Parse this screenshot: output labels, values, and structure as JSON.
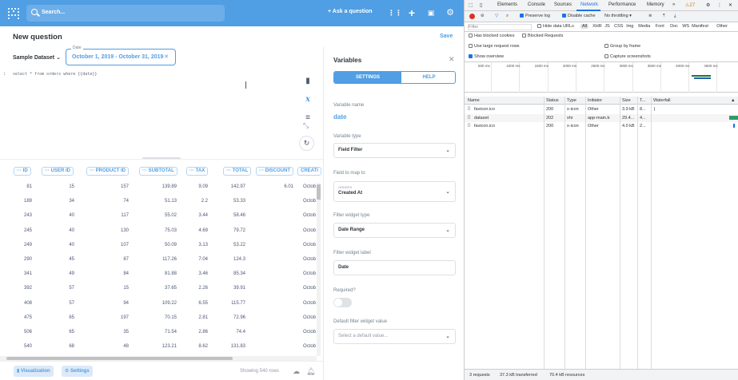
{
  "topbar": {
    "search_placeholder": "Search...",
    "ask_question": "Ask a question",
    "grid_icon": "grid-icon",
    "plus_icon": "plus-icon",
    "browse_icon": "browse-icon",
    "settings_icon": "gear-icon"
  },
  "question": {
    "title": "New question",
    "save": "Save",
    "dataset": "Sample Dataset",
    "date_label": "Date",
    "date_value": "October 1, 2019 - October 31, 2019",
    "sql": "select * from orders where {{date}}",
    "gutter": "1"
  },
  "table": {
    "columns": [
      "ID",
      "USER ID",
      "PRODUCT ID",
      "SUBTOTAL",
      "TAX",
      "TOTAL",
      "DISCOUNT",
      "CREATI"
    ],
    "rows": [
      [
        "81",
        "15",
        "157",
        "139.89",
        "9.09",
        "142.97",
        "6.01",
        "Octob"
      ],
      [
        "189",
        "34",
        "74",
        "51.13",
        "2.2",
        "53.33",
        "",
        "Octob"
      ],
      [
        "243",
        "40",
        "117",
        "55.02",
        "3.44",
        "58.46",
        "",
        "Octob"
      ],
      [
        "245",
        "40",
        "130",
        "75.03",
        "4.69",
        "79.72",
        "",
        "Octob"
      ],
      [
        "249",
        "40",
        "107",
        "50.09",
        "3.13",
        "53.22",
        "",
        "Octob"
      ],
      [
        "290",
        "45",
        "87",
        "117.26",
        "7.04",
        "124.3",
        "",
        "Octob"
      ],
      [
        "341",
        "49",
        "84",
        "81.88",
        "3.46",
        "85.34",
        "",
        "Octob"
      ],
      [
        "392",
        "57",
        "15",
        "37.65",
        "2.26",
        "39.91",
        "",
        "Octob"
      ],
      [
        "408",
        "57",
        "94",
        "109.22",
        "6.55",
        "115.77",
        "",
        "Octob"
      ],
      [
        "475",
        "65",
        "197",
        "70.15",
        "2.81",
        "72.96",
        "",
        "Octob"
      ],
      [
        "506",
        "65",
        "35",
        "71.54",
        "2.86",
        "74.4",
        "",
        "Octob"
      ],
      [
        "540",
        "68",
        "48",
        "123.21",
        "8.62",
        "131.83",
        "",
        "Octob"
      ]
    ]
  },
  "footer": {
    "visualization": "Visualization",
    "settings": "Settings",
    "rows_info": "Showing 540 rows"
  },
  "variables": {
    "title": "Variables",
    "tab_settings": "SETTINGS",
    "tab_help": "HELP",
    "name_label": "Variable name",
    "name_value": "date",
    "type_label": "Variable type",
    "type_value": "Field Filter",
    "field_label": "Field to map to",
    "field_sub": "ORDERS",
    "field_value": "Created At",
    "widget_type_label": "Filter widget type",
    "widget_type_value": "Date Range",
    "widget_label_label": "Filter widget label",
    "widget_label_value": "Date",
    "required_label": "Required?",
    "default_label": "Default filter widget value",
    "default_placeholder": "Select a default value..."
  },
  "devtools": {
    "tabs": [
      "Elements",
      "Console",
      "Sources",
      "Network",
      "Performance",
      "Memory",
      "»"
    ],
    "active_tab": "Network",
    "warning_count": "27",
    "preserve_log": "Preserve log",
    "disable_cache": "Disable cache",
    "throttling": "No throttling",
    "filter_placeholder": "Filter",
    "hide_data_urls": "Hide data URLs",
    "filter_types": [
      "All",
      "XHR",
      "JS",
      "CSS",
      "Img",
      "Media",
      "Font",
      "Doc",
      "WS",
      "Manifest",
      "Other"
    ],
    "has_blocked_cookies": "Has blocked cookies",
    "blocked_requests": "Blocked Requests",
    "large_rows": "Use large request rows",
    "group_by_frame": "Group by frame",
    "show_overview": "Show overview",
    "capture_screenshots": "Capture screenshots",
    "ticks": [
      "500 ms",
      "1000 ms",
      "1500 ms",
      "2000 ms",
      "2500 ms",
      "3000 ms",
      "3500 ms",
      "4000 ms",
      "4500 ms"
    ],
    "columns": [
      "Name",
      "Status",
      "Type",
      "Initiator",
      "Size",
      "T...",
      "Waterfall"
    ],
    "requests": [
      {
        "name": "favicon.ico",
        "status": "200",
        "type": "x-icon",
        "initiator": "Other",
        "size": "3.9 kB",
        "time": "8..."
      },
      {
        "name": "dataset",
        "status": "202",
        "type": "xhr",
        "initiator": "app-main.b",
        "size": "29.4...",
        "time": "4..."
      },
      {
        "name": "favicon.ico",
        "status": "200",
        "type": "x-icon",
        "initiator": "Other",
        "size": "4.0 kB",
        "time": "2..."
      }
    ],
    "status_requests": "3 requests",
    "status_transferred": "37.3 kB transferred",
    "status_resources": "70.4 kB resources"
  }
}
